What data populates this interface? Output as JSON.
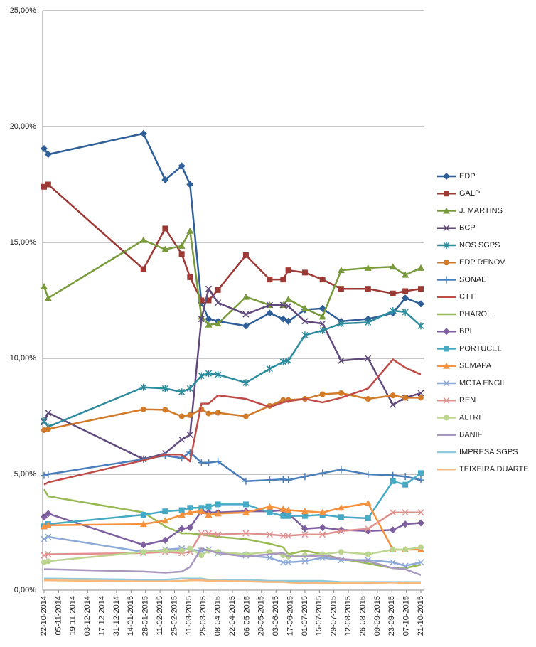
{
  "chart_data": {
    "type": "line",
    "x": [
      "22-10-2014",
      "26-10-2014",
      "26-01-2015",
      "16-02-2015",
      "04-03-2015",
      "12-03-2015",
      "23-03-2015",
      "30-03-2015",
      "08-04-2015",
      "05-05-2015",
      "28-05-2015",
      "10-06-2015",
      "15-06-2015",
      "01-07-2015",
      "18-07-2015",
      "05-08-2015",
      "31-08-2015",
      "24-09-2015",
      "06-10-2015",
      "21-10-2015"
    ],
    "xlim": [
      "22-10-2014",
      "21-10-2015"
    ],
    "xticks": [
      "22-10-2014",
      "05-11-2014",
      "19-11-2014",
      "03-12-2014",
      "17-12-2014",
      "31-12-2014",
      "14-01-2015",
      "28-01-2015",
      "11-02-2015",
      "25-02-2015",
      "11-03-2015",
      "25-03-2015",
      "08-04-2015",
      "22-04-2015",
      "06-05-2015",
      "20-05-2015",
      "03-06-2015",
      "17-06-2015",
      "01-07-2015",
      "15-07-2015",
      "29-07-2015",
      "12-08-2015",
      "26-08-2015",
      "09-09-2015",
      "23-09-2015",
      "07-10-2015",
      "21-10-2015"
    ],
    "ylim": [
      0,
      25
    ],
    "yticks": [
      {
        "value": 0,
        "label": "0,00%"
      },
      {
        "value": 5,
        "label": "5,00%"
      },
      {
        "value": 10,
        "label": "10,00%"
      },
      {
        "value": 15,
        "label": "15,00%"
      },
      {
        "value": 20,
        "label": "20,00%"
      },
      {
        "value": 25,
        "label": "25,00%"
      }
    ],
    "grid": true,
    "legend": "right",
    "series": [
      {
        "name": "EDP",
        "color": "#2f5f98",
        "marker": "diamond",
        "values": [
          19.05,
          18.8,
          19.7,
          17.7,
          18.3,
          17.5,
          12.4,
          11.7,
          11.6,
          11.4,
          11.95,
          11.7,
          11.6,
          12.1,
          12.15,
          11.6,
          11.7,
          11.95,
          12.6,
          12.35
        ]
      },
      {
        "name": "GALP",
        "color": "#9e3a36",
        "marker": "square",
        "values": [
          17.4,
          17.5,
          13.85,
          15.6,
          14.5,
          13.5,
          12.5,
          12.5,
          12.95,
          14.45,
          13.4,
          13.4,
          13.8,
          13.7,
          13.4,
          13.0,
          13.0,
          12.8,
          12.9,
          13.0
        ]
      },
      {
        "name": "J. MARTINS",
        "color": "#789a3a",
        "marker": "triangle",
        "values": [
          13.1,
          12.6,
          15.1,
          14.7,
          14.85,
          15.5,
          11.8,
          11.45,
          11.5,
          12.65,
          12.3,
          12.3,
          12.55,
          12.15,
          11.8,
          13.8,
          13.9,
          13.95,
          13.6,
          13.9
        ]
      },
      {
        "name": "BCP",
        "color": "#604a7b",
        "marker": "x",
        "values": [
          7.25,
          7.65,
          5.65,
          5.9,
          6.5,
          6.7,
          11.7,
          13.0,
          12.4,
          11.9,
          12.3,
          12.3,
          12.25,
          11.6,
          11.5,
          9.9,
          10.0,
          8.0,
          8.3,
          8.5
        ]
      },
      {
        "name": "NOS SGPS",
        "color": "#2d8c9e",
        "marker": "star",
        "values": [
          7.3,
          7.05,
          8.75,
          8.7,
          8.55,
          8.7,
          9.25,
          9.35,
          9.3,
          8.95,
          9.55,
          9.85,
          9.9,
          11.0,
          11.2,
          11.5,
          11.55,
          12.05,
          12.0,
          11.4
        ]
      },
      {
        "name": "EDP RENOV.",
        "color": "#d07a2a",
        "marker": "circle",
        "values": [
          6.9,
          6.95,
          7.8,
          7.78,
          7.5,
          7.55,
          7.8,
          7.62,
          7.65,
          7.5,
          7.95,
          8.2,
          8.2,
          8.25,
          8.45,
          8.5,
          8.25,
          8.4,
          8.3,
          8.3
        ]
      },
      {
        "name": "SONAE",
        "color": "#4a7ebb",
        "marker": "plus",
        "values": [
          4.95,
          5.0,
          5.65,
          5.8,
          5.7,
          5.95,
          5.5,
          5.5,
          5.55,
          4.7,
          4.75,
          4.78,
          4.75,
          4.9,
          5.05,
          5.2,
          5.0,
          4.95,
          4.9,
          4.75
        ]
      },
      {
        "name": "CTT",
        "color": "#be4b48",
        "marker": "none",
        "values": [
          4.55,
          4.65,
          5.6,
          5.85,
          5.85,
          5.55,
          8.05,
          8.05,
          8.4,
          8.25,
          7.9,
          8.1,
          8.15,
          8.25,
          8.1,
          8.3,
          8.7,
          9.95,
          9.6,
          9.3
        ]
      },
      {
        "name": "PHAROL",
        "color": "#98b954",
        "marker": "none",
        "values": [
          4.35,
          4.05,
          3.35,
          2.75,
          2.45,
          2.45,
          2.4,
          2.35,
          2.3,
          2.2,
          2.0,
          1.85,
          1.55,
          1.7,
          1.55,
          1.35,
          1.15,
          0.95,
          0.95,
          1.1
        ]
      },
      {
        "name": "BPI",
        "color": "#7d5fa0",
        "marker": "diamond",
        "values": [
          3.15,
          3.3,
          1.95,
          2.15,
          2.65,
          2.7,
          3.4,
          3.35,
          3.35,
          3.4,
          3.4,
          3.45,
          3.3,
          2.65,
          2.7,
          2.6,
          2.55,
          2.6,
          2.85,
          2.9
        ]
      },
      {
        "name": "PORTUCEL",
        "color": "#46aac5",
        "marker": "square",
        "values": [
          2.75,
          2.85,
          3.25,
          3.4,
          3.45,
          3.55,
          3.55,
          3.6,
          3.7,
          3.7,
          3.35,
          3.2,
          3.2,
          3.2,
          3.25,
          3.15,
          3.1,
          4.7,
          4.55,
          5.05
        ]
      },
      {
        "name": "SEMAPA",
        "color": "#f59240",
        "marker": "triangle",
        "values": [
          2.75,
          2.8,
          2.85,
          3.0,
          3.25,
          3.35,
          3.4,
          3.25,
          3.3,
          3.35,
          3.6,
          3.5,
          3.45,
          3.4,
          3.35,
          3.55,
          3.75,
          1.75,
          1.75,
          1.75
        ]
      },
      {
        "name": "MOTA ENGIL",
        "color": "#8eaad8",
        "marker": "x",
        "values": [
          2.2,
          2.3,
          1.65,
          1.75,
          1.8,
          1.75,
          1.7,
          1.75,
          1.6,
          1.5,
          1.4,
          1.2,
          1.2,
          1.25,
          1.4,
          1.3,
          1.3,
          1.2,
          1.05,
          1.2
        ]
      },
      {
        "name": "REN",
        "color": "#e0918f",
        "marker": "x",
        "values": [
          1.5,
          1.55,
          1.6,
          1.65,
          1.6,
          1.65,
          2.45,
          2.45,
          2.4,
          2.45,
          2.4,
          2.35,
          2.35,
          2.4,
          2.4,
          2.55,
          2.65,
          3.35,
          3.35,
          3.35
        ]
      },
      {
        "name": "ALTRI",
        "color": "#bcd58f",
        "marker": "circle",
        "values": [
          1.2,
          1.25,
          1.65,
          1.7,
          1.7,
          1.8,
          1.5,
          1.7,
          1.65,
          1.55,
          1.65,
          1.5,
          1.45,
          1.5,
          1.55,
          1.65,
          1.55,
          1.75,
          1.75,
          1.85
        ]
      },
      {
        "name": "BANIF",
        "color": "#a898bf",
        "marker": "none",
        "values": [
          0.9,
          0.9,
          0.8,
          0.75,
          0.8,
          1.0,
          1.8,
          1.7,
          1.6,
          1.45,
          1.55,
          1.6,
          1.45,
          1.45,
          1.5,
          1.35,
          1.25,
          0.95,
          0.9,
          0.65
        ]
      },
      {
        "name": "IMPRESA SGPS",
        "color": "#8fcadb",
        "marker": "none",
        "values": [
          0.5,
          0.5,
          0.45,
          0.45,
          0.5,
          0.5,
          0.5,
          0.45,
          0.45,
          0.45,
          0.4,
          0.4,
          0.4,
          0.4,
          0.4,
          0.35,
          0.35,
          0.35,
          0.35,
          0.35
        ]
      },
      {
        "name": "TEIXEIRA DUARTE",
        "color": "#f8b87c",
        "marker": "none",
        "values": [
          0.42,
          0.42,
          0.38,
          0.38,
          0.4,
          0.42,
          0.42,
          0.4,
          0.4,
          0.38,
          0.35,
          0.35,
          0.33,
          0.3,
          0.32,
          0.3,
          0.3,
          0.33,
          0.3,
          0.3
        ]
      }
    ]
  }
}
